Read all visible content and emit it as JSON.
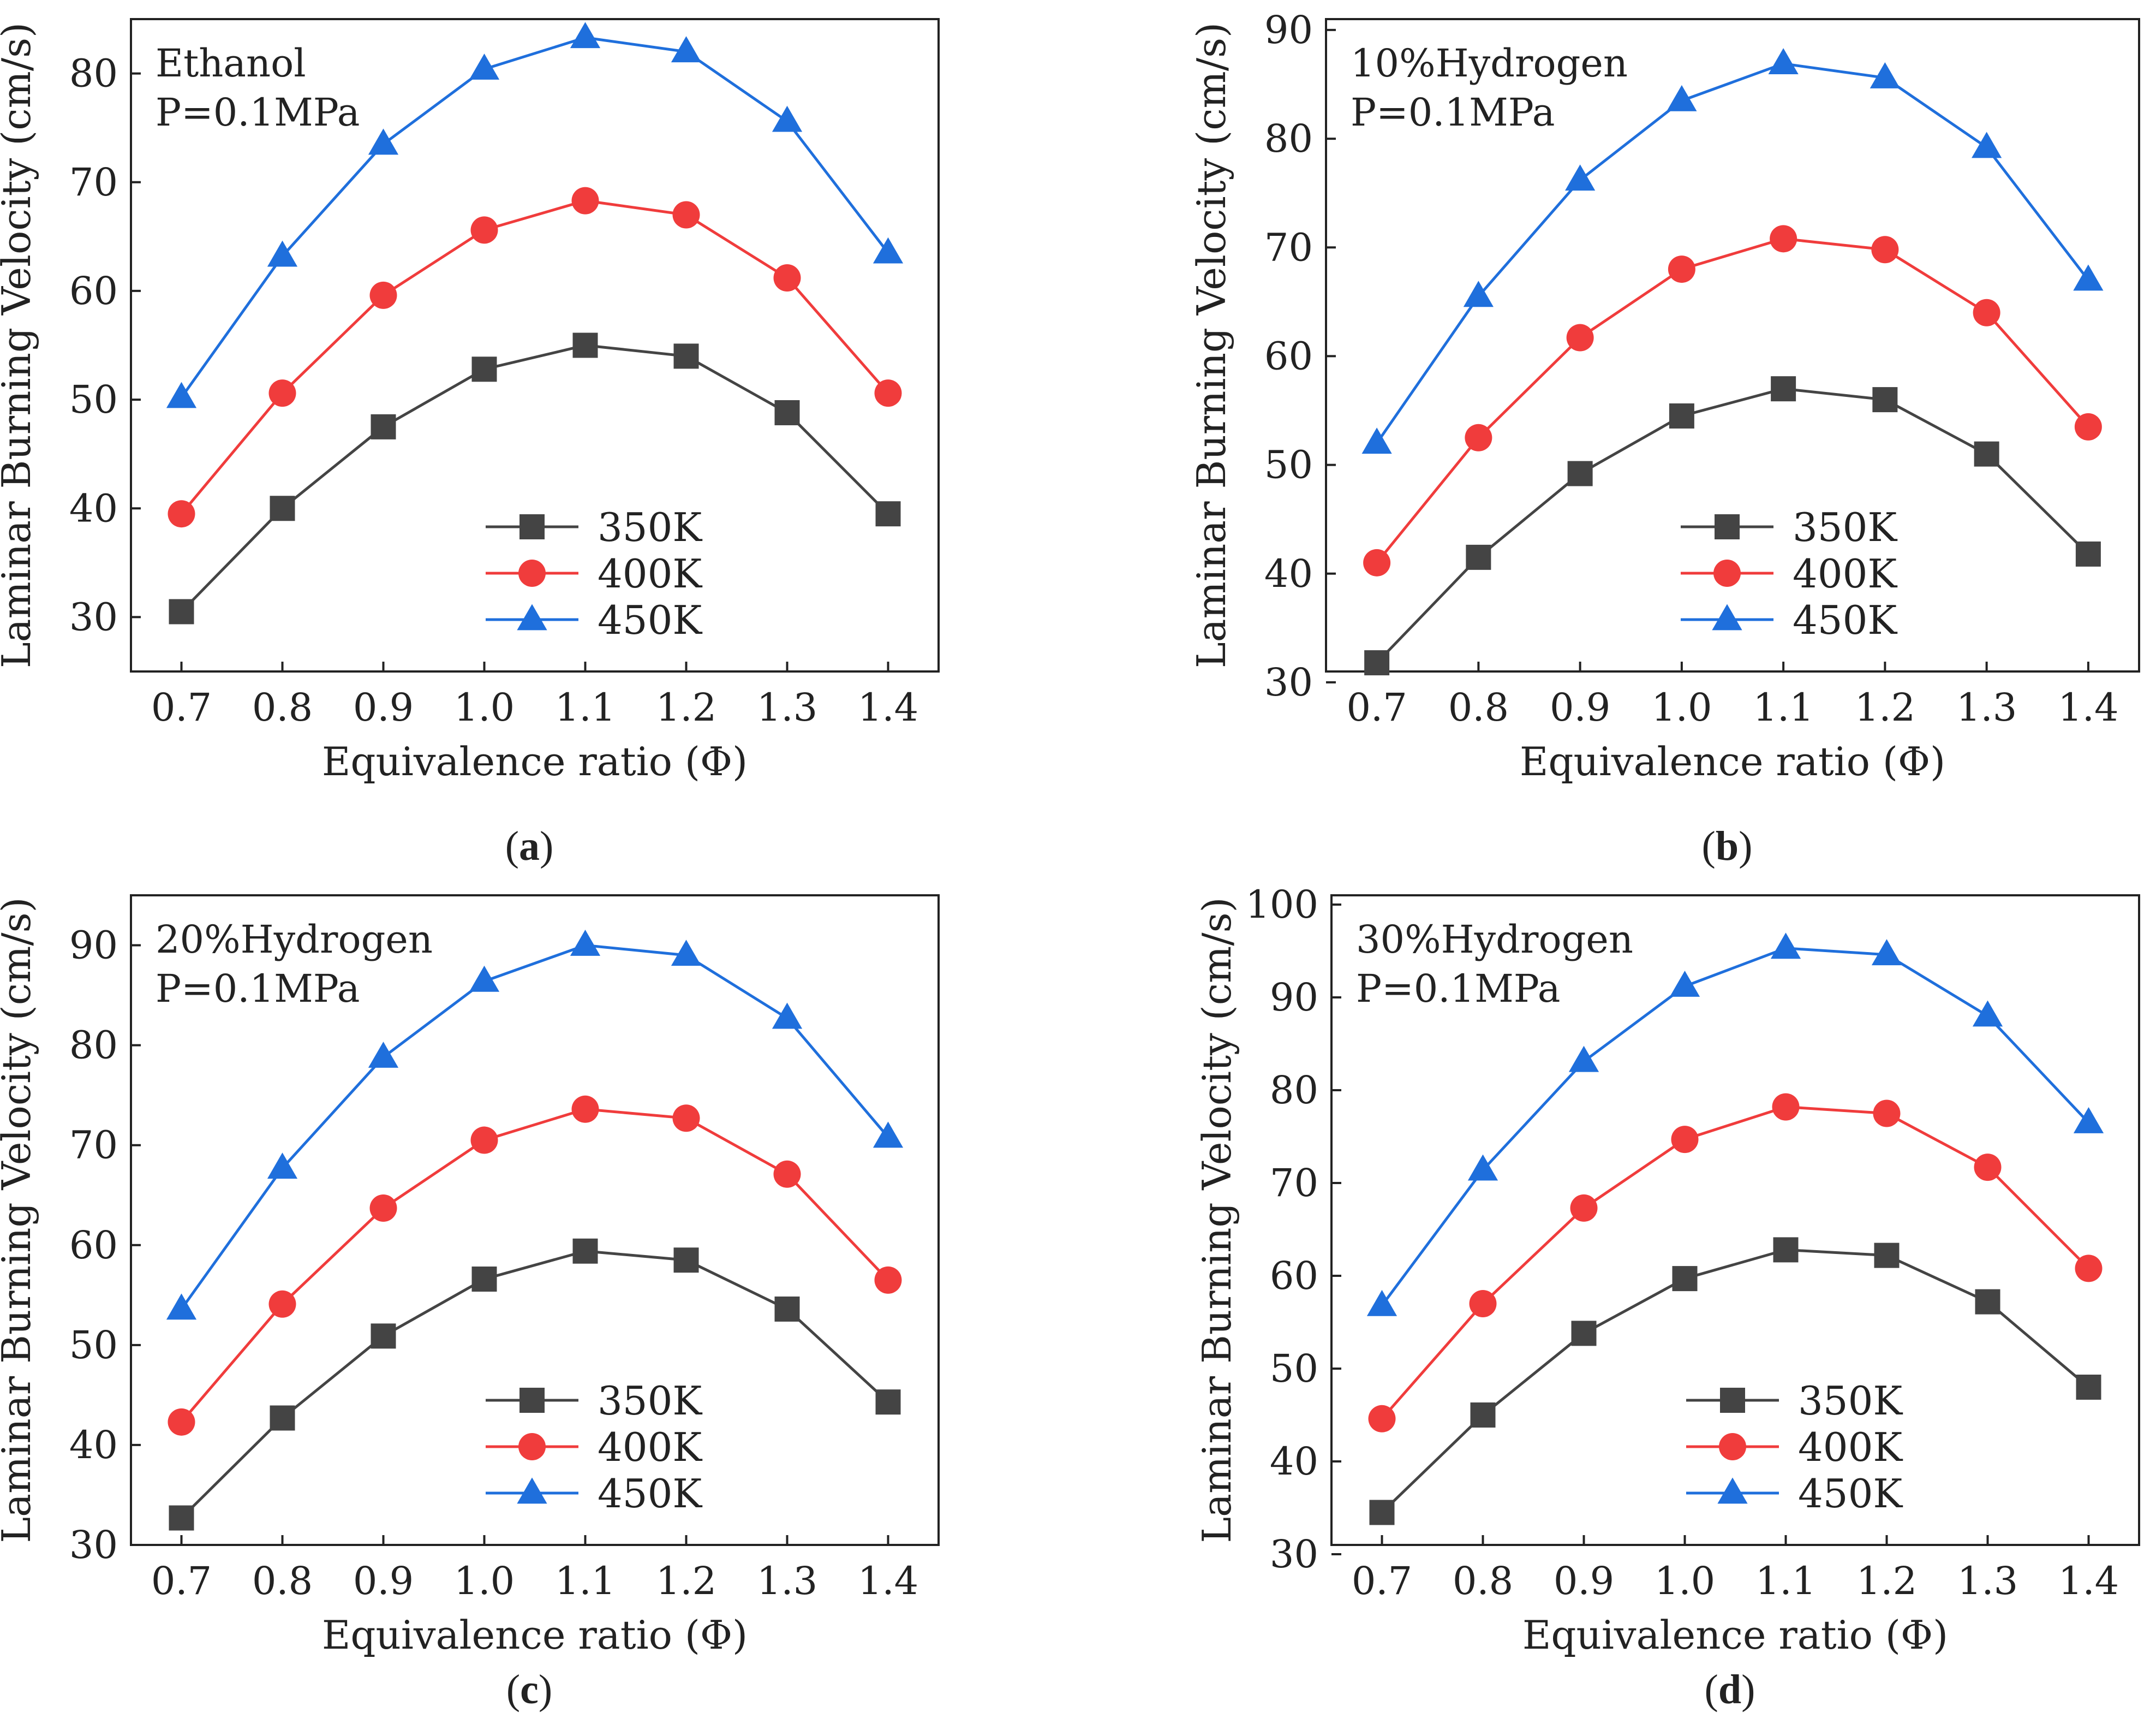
{
  "colors": {
    "series_350K": "#444444",
    "series_400K": "#f03c3c",
    "series_450K": "#1f6fdc",
    "axis": "#222222"
  },
  "chart_data": [
    {
      "type": "line",
      "panel": "(a)",
      "caption_letter": "a",
      "annotation": [
        "Ethanol",
        "P=0.1MPa"
      ],
      "xlabel": "Equivalence ratio (Φ)",
      "ylabel": "Laminar Burning Velocity (cm/s)",
      "x": [
        0.7,
        0.8,
        0.9,
        1.0,
        1.1,
        1.2,
        1.3,
        1.4
      ],
      "xtick_labels": [
        "0.7",
        "0.8",
        "0.9",
        "1.0",
        "1.1",
        "1.2",
        "1.3",
        "1.4"
      ],
      "xlim": [
        0.65,
        1.45
      ],
      "ylim": [
        25,
        85
      ],
      "yticks": [
        30,
        40,
        50,
        60,
        70,
        80
      ],
      "legend_placement": "lower-center",
      "series": [
        {
          "name": "350K",
          "marker": "square",
          "values": [
            30.5,
            40.0,
            47.5,
            52.8,
            55.0,
            54.0,
            48.8,
            39.5
          ]
        },
        {
          "name": "400K",
          "marker": "circle",
          "values": [
            39.5,
            50.6,
            59.6,
            65.6,
            68.3,
            67.0,
            61.2,
            50.6
          ]
        },
        {
          "name": "450K",
          "marker": "triangle",
          "values": [
            50.2,
            63.2,
            73.5,
            80.4,
            83.3,
            82.0,
            75.6,
            63.5
          ]
        }
      ]
    },
    {
      "type": "line",
      "panel": "(b)",
      "caption_letter": "b",
      "annotation": [
        "10%Hydrogen",
        "P=0.1MPa"
      ],
      "xlabel": "Equivalence ratio (Φ)",
      "ylabel": "Laminar Burning Velocity (cm/s)",
      "x": [
        0.7,
        0.8,
        0.9,
        1.0,
        1.1,
        1.2,
        1.3,
        1.4
      ],
      "xtick_labels": [
        "0.7",
        "0.8",
        "0.9",
        "1.0",
        "1.1",
        "1.2",
        "1.3",
        "1.4"
      ],
      "xlim": [
        0.65,
        1.45
      ],
      "ylim": [
        31,
        91
      ],
      "yticks": [
        30,
        40,
        50,
        60,
        70,
        80,
        90
      ],
      "legend_placement": "lower-center",
      "series": [
        {
          "name": "350K",
          "marker": "square",
          "values": [
            31.8,
            41.5,
            49.2,
            54.5,
            57.0,
            56.0,
            51.0,
            41.8
          ]
        },
        {
          "name": "400K",
          "marker": "circle",
          "values": [
            41.0,
            52.5,
            61.7,
            68.0,
            70.8,
            69.8,
            64.0,
            53.5
          ]
        },
        {
          "name": "450K",
          "marker": "triangle",
          "values": [
            52.0,
            65.5,
            76.2,
            83.5,
            86.9,
            85.6,
            79.2,
            67.0
          ]
        }
      ]
    },
    {
      "type": "line",
      "panel": "(c)",
      "caption_letter": "c",
      "annotation": [
        "20%Hydrogen",
        "P=0.1MPa"
      ],
      "xlabel": "Equivalence ratio (Φ)",
      "ylabel": "Laminar Burning Velocity (cm/s)",
      "x": [
        0.7,
        0.8,
        0.9,
        1.0,
        1.1,
        1.2,
        1.3,
        1.4
      ],
      "xtick_labels": [
        "0.7",
        "0.8",
        "0.9",
        "1.0",
        "1.1",
        "1.2",
        "1.3",
        "1.4"
      ],
      "xlim": [
        0.65,
        1.45
      ],
      "ylim": [
        30,
        95
      ],
      "yticks": [
        30,
        40,
        50,
        60,
        70,
        80,
        90
      ],
      "legend_placement": "lower-center",
      "series": [
        {
          "name": "350K",
          "marker": "square",
          "values": [
            32.7,
            42.7,
            50.9,
            56.6,
            59.4,
            58.5,
            53.6,
            44.3
          ]
        },
        {
          "name": "400K",
          "marker": "circle",
          "values": [
            42.3,
            54.1,
            63.7,
            70.5,
            73.6,
            72.7,
            67.1,
            56.5
          ]
        },
        {
          "name": "450K",
          "marker": "triangle",
          "values": [
            53.6,
            67.7,
            78.8,
            86.4,
            90.0,
            89.0,
            82.7,
            70.8
          ]
        }
      ]
    },
    {
      "type": "line",
      "panel": "(d)",
      "caption_letter": "d",
      "annotation": [
        "30%Hydrogen",
        "P=0.1MPa"
      ],
      "xlabel": "Equivalence ratio (Φ)",
      "ylabel": "Laminar Burning Velocity (cm/s)",
      "x": [
        0.7,
        0.8,
        0.9,
        1.0,
        1.1,
        1.2,
        1.3,
        1.4
      ],
      "xtick_labels": [
        "0.7",
        "0.8",
        "0.9",
        "1.0",
        "1.1",
        "1.2",
        "1.3",
        "1.4"
      ],
      "xlim": [
        0.65,
        1.45
      ],
      "ylim": [
        31,
        101
      ],
      "yticks": [
        30,
        40,
        50,
        60,
        70,
        80,
        90,
        100
      ],
      "legend_placement": "lower-center",
      "series": [
        {
          "name": "350K",
          "marker": "square",
          "values": [
            34.5,
            45.0,
            53.8,
            59.7,
            62.8,
            62.2,
            57.2,
            48.0
          ]
        },
        {
          "name": "400K",
          "marker": "circle",
          "values": [
            44.6,
            57.0,
            67.3,
            74.7,
            78.2,
            77.5,
            71.7,
            60.8
          ]
        },
        {
          "name": "450K",
          "marker": "triangle",
          "values": [
            56.8,
            71.4,
            83.1,
            91.2,
            95.3,
            94.6,
            88.0,
            76.5
          ]
        }
      ]
    }
  ]
}
